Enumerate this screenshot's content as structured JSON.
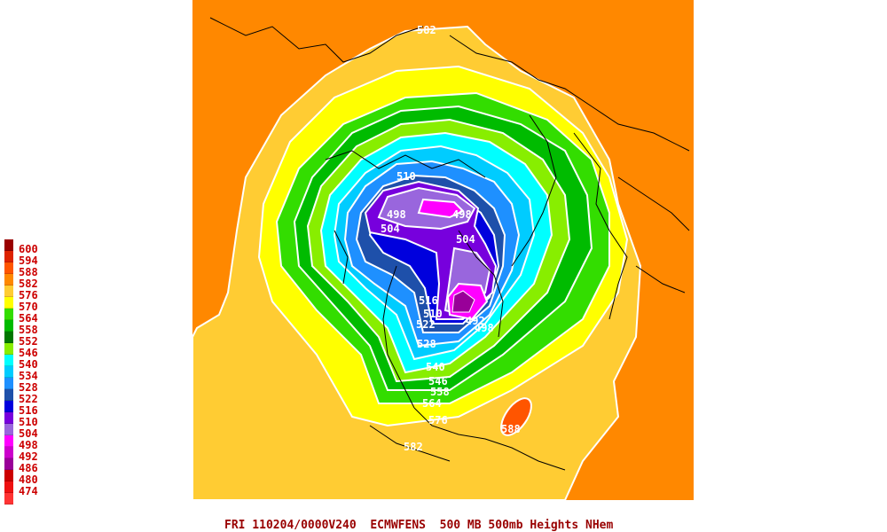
{
  "caption": "FRI 110204/0000V240  ECMWFENS  500 MB 500mb Heights NHem",
  "legend": [
    {
      "label": "600",
      "color": "#990000"
    },
    {
      "label": "594",
      "color": "#dd2200"
    },
    {
      "label": "588",
      "color": "#ff5500"
    },
    {
      "label": "582",
      "color": "#ff8800"
    },
    {
      "label": "576",
      "color": "#ffcc33"
    },
    {
      "label": "570",
      "color": "#ffff00"
    },
    {
      "label": "564",
      "color": "#33dd00"
    },
    {
      "label": "558",
      "color": "#00bb00"
    },
    {
      "label": "552",
      "color": "#007700"
    },
    {
      "label": "546",
      "color": "#88ee00"
    },
    {
      "label": "540",
      "color": "#00ffff"
    },
    {
      "label": "534",
      "color": "#00ccff"
    },
    {
      "label": "528",
      "color": "#1e90ff"
    },
    {
      "label": "522",
      "color": "#1e50aa"
    },
    {
      "label": "516",
      "color": "#0000dd"
    },
    {
      "label": "510",
      "color": "#7700dd"
    },
    {
      "label": "504",
      "color": "#9966dd"
    },
    {
      "label": "498",
      "color": "#ff00ff"
    },
    {
      "label": "492",
      "color": "#cc00cc"
    },
    {
      "label": "486",
      "color": "#990099"
    },
    {
      "label": "480",
      "color": "#cc0000"
    },
    {
      "label": "474",
      "color": "#ee1111"
    },
    {
      "label": "",
      "color": "#ff3333"
    }
  ],
  "contour_labels": {
    "l582_top": "582",
    "l510": "510",
    "l498_a": "498",
    "l498_b": "498",
    "l504_a": "504",
    "l504_b": "504",
    "l516": "516",
    "l510_b": "510",
    "l522": "522",
    "l492": "492",
    "l498_c": "498",
    "l528": "528",
    "l540": "540",
    "l546": "546",
    "l558": "558",
    "l564": "564",
    "l576": "576",
    "l588": "588",
    "l582_bottom": "582"
  }
}
